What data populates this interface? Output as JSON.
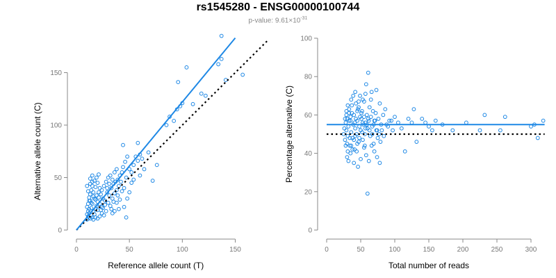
{
  "title": "rs1545280 - ENSG00000100744",
  "subtitle": {
    "prefix": "p-value: 9.61×10",
    "exponent": "-31"
  },
  "colors": {
    "points": "#1e88e5",
    "fit": "#1e88e5",
    "reference": "#000000",
    "axis": "#888888"
  },
  "chart_data": [
    {
      "type": "scatter",
      "xlabel": "Reference allele count (T)",
      "ylabel": "Alternative allele count (C)",
      "xlim": [
        0,
        180
      ],
      "ylim": [
        0,
        180
      ],
      "xticks": [
        0,
        50,
        100,
        150
      ],
      "yticks": [
        0,
        50,
        100,
        150
      ],
      "fit_line": {
        "x": [
          0,
          150
        ],
        "y": [
          0,
          183
        ]
      },
      "reference_line": {
        "x": [
          0,
          180
        ],
        "y": [
          0,
          180
        ],
        "style": "dotted"
      },
      "points": [
        [
          10,
          10
        ],
        [
          11,
          13
        ],
        [
          12,
          12
        ],
        [
          13,
          11
        ],
        [
          10,
          15
        ],
        [
          11,
          18
        ],
        [
          12,
          20
        ],
        [
          10,
          22
        ],
        [
          11,
          25
        ],
        [
          13,
          28
        ],
        [
          12,
          16
        ],
        [
          14,
          14
        ],
        [
          15,
          12
        ],
        [
          16,
          18
        ],
        [
          14,
          21
        ],
        [
          15,
          25
        ],
        [
          17,
          15
        ],
        [
          18,
          20
        ],
        [
          19,
          23
        ],
        [
          20,
          19
        ],
        [
          12,
          31
        ],
        [
          13,
          34
        ],
        [
          14,
          38
        ],
        [
          15,
          42
        ],
        [
          16,
          36
        ],
        [
          18,
          41
        ],
        [
          20,
          45
        ],
        [
          22,
          40
        ],
        [
          13,
          49
        ],
        [
          15,
          52
        ],
        [
          17,
          47
        ],
        [
          19,
          50
        ],
        [
          21,
          53
        ],
        [
          16,
          32
        ],
        [
          18,
          29
        ],
        [
          20,
          27
        ],
        [
          22,
          25
        ],
        [
          24,
          22
        ],
        [
          21,
          31
        ],
        [
          23,
          34
        ],
        [
          25,
          30
        ],
        [
          27,
          28
        ],
        [
          24,
          38
        ],
        [
          26,
          42
        ],
        [
          28,
          46
        ],
        [
          30,
          50
        ],
        [
          29,
          36
        ],
        [
          31,
          33
        ],
        [
          33,
          40
        ],
        [
          35,
          44
        ],
        [
          32,
          52
        ],
        [
          34,
          48
        ],
        [
          36,
          55
        ],
        [
          38,
          58
        ],
        [
          30,
          26
        ],
        [
          32,
          23
        ],
        [
          34,
          30
        ],
        [
          36,
          35
        ],
        [
          38,
          38
        ],
        [
          40,
          42
        ],
        [
          42,
          46
        ],
        [
          39,
          33
        ],
        [
          41,
          29
        ],
        [
          43,
          37
        ],
        [
          45,
          40
        ],
        [
          47,
          50
        ],
        [
          44,
          60
        ],
        [
          46,
          65
        ],
        [
          48,
          70
        ],
        [
          50,
          58
        ],
        [
          52,
          55
        ],
        [
          54,
          62
        ],
        [
          56,
          70
        ],
        [
          58,
          66
        ],
        [
          60,
          72
        ],
        [
          48,
          30
        ],
        [
          50,
          36
        ],
        [
          52,
          45
        ],
        [
          54,
          48
        ],
        [
          45,
          22
        ],
        [
          47,
          12
        ],
        [
          44,
          81
        ],
        [
          58,
          83
        ],
        [
          62,
          68
        ],
        [
          68,
          74
        ],
        [
          72,
          47
        ],
        [
          76,
          62
        ],
        [
          60,
          52
        ],
        [
          64,
          58
        ],
        [
          40,
          20
        ],
        [
          38,
          26
        ],
        [
          36,
          18
        ],
        [
          34,
          16
        ],
        [
          28,
          18
        ],
        [
          26,
          14
        ],
        [
          24,
          16
        ],
        [
          22,
          13
        ],
        [
          20,
          11
        ],
        [
          18,
          12
        ],
        [
          16,
          10
        ],
        [
          14,
          26
        ],
        [
          12,
          28
        ],
        [
          11,
          37
        ],
        [
          10,
          42
        ],
        [
          13,
          44
        ],
        [
          15,
          46
        ],
        [
          17,
          30
        ],
        [
          19,
          33
        ],
        [
          21,
          36
        ],
        [
          23,
          19
        ],
        [
          25,
          21
        ],
        [
          27,
          24
        ],
        [
          29,
          40
        ],
        [
          31,
          44
        ],
        [
          33,
          20
        ],
        [
          35,
          27
        ],
        [
          37,
          46
        ],
        [
          39,
          48
        ],
        [
          41,
          52
        ],
        [
          43,
          55
        ],
        [
          85,
          100
        ],
        [
          88,
          108
        ],
        [
          92,
          104
        ],
        [
          95,
          115
        ],
        [
          98,
          118
        ],
        [
          100,
          121
        ],
        [
          96,
          141
        ],
        [
          104,
          155
        ],
        [
          110,
          120
        ],
        [
          118,
          130
        ],
        [
          122,
          128
        ],
        [
          134,
          158
        ],
        [
          137,
          163
        ],
        [
          137,
          185
        ],
        [
          141,
          143
        ],
        [
          157,
          148
        ]
      ]
    },
    {
      "type": "scatter",
      "xlabel": "Total number of reads",
      "ylabel": "Percentage alternative (C)",
      "xlim": [
        0,
        320
      ],
      "ylim": [
        0,
        100
      ],
      "xticks": [
        0,
        50,
        100,
        150,
        200,
        250,
        300
      ],
      "yticks": [
        0,
        20,
        40,
        60,
        80,
        100
      ],
      "fit_line": {
        "x": [
          0,
          320
        ],
        "y": [
          55,
          55
        ]
      },
      "reference_line": {
        "x": [
          0,
          320
        ],
        "y": [
          50,
          50
        ],
        "style": "dotted"
      },
      "points": [
        [
          25,
          50
        ],
        [
          26,
          53
        ],
        [
          27,
          47
        ],
        [
          28,
          56
        ],
        [
          29,
          52
        ],
        [
          30,
          45
        ],
        [
          30,
          58
        ],
        [
          31,
          49
        ],
        [
          32,
          54
        ],
        [
          33,
          61
        ],
        [
          34,
          44
        ],
        [
          35,
          57
        ],
        [
          36,
          51
        ],
        [
          37,
          65
        ],
        [
          38,
          48
        ],
        [
          39,
          55
        ],
        [
          40,
          60
        ],
        [
          41,
          42
        ],
        [
          42,
          53
        ],
        [
          43,
          66
        ],
        [
          44,
          50
        ],
        [
          45,
          57
        ],
        [
          46,
          63
        ],
        [
          47,
          46
        ],
        [
          48,
          54
        ],
        [
          49,
          70
        ],
        [
          50,
          52
        ],
        [
          51,
          58
        ],
        [
          52,
          62
        ],
        [
          53,
          47
        ],
        [
          54,
          55
        ],
        [
          55,
          67
        ],
        [
          56,
          50
        ],
        [
          57,
          56
        ],
        [
          58,
          76
        ],
        [
          59,
          60
        ],
        [
          60,
          53
        ],
        [
          61,
          82
        ],
        [
          62,
          57
        ],
        [
          63,
          64
        ],
        [
          64,
          49
        ],
        [
          65,
          59
        ],
        [
          66,
          72
        ],
        [
          67,
          54
        ],
        [
          68,
          62
        ],
        [
          69,
          45
        ],
        [
          70,
          57
        ],
        [
          72,
          61
        ],
        [
          74,
          52
        ],
        [
          76,
          58
        ],
        [
          78,
          66
        ],
        [
          80,
          55
        ],
        [
          83,
          60
        ],
        [
          86,
          63
        ],
        [
          90,
          54
        ],
        [
          95,
          57
        ],
        [
          30,
          38
        ],
        [
          32,
          36
        ],
        [
          35,
          40
        ],
        [
          38,
          42
        ],
        [
          40,
          35
        ],
        [
          44,
          41
        ],
        [
          46,
          33
        ],
        [
          50,
          37
        ],
        [
          55,
          43
        ],
        [
          58,
          39
        ],
        [
          62,
          36
        ],
        [
          66,
          44
        ],
        [
          70,
          41
        ],
        [
          74,
          38
        ],
        [
          78,
          35
        ],
        [
          60,
          19
        ],
        [
          45,
          45
        ],
        [
          48,
          48
        ],
        [
          52,
          51
        ],
        [
          56,
          44
        ],
        [
          36,
          44
        ],
        [
          40,
          47
        ],
        [
          42,
          49
        ],
        [
          34,
          48
        ],
        [
          28,
          44
        ],
        [
          31,
          41
        ],
        [
          29,
          60
        ],
        [
          33,
          63
        ],
        [
          36,
          68
        ],
        [
          39,
          70
        ],
        [
          42,
          72
        ],
        [
          47,
          67
        ],
        [
          53,
          68
        ],
        [
          57,
          71
        ],
        [
          65,
          68
        ],
        [
          73,
          73
        ],
        [
          27,
          58
        ],
        [
          29,
          62
        ],
        [
          31,
          65
        ],
        [
          33,
          57
        ],
        [
          35,
          59
        ],
        [
          37,
          61
        ],
        [
          41,
          56
        ],
        [
          43,
          58
        ],
        [
          45,
          62
        ],
        [
          47,
          64
        ],
        [
          49,
          59
        ],
        [
          51,
          61
        ],
        [
          53,
          56
        ],
        [
          55,
          59
        ],
        [
          57,
          53
        ],
        [
          59,
          55
        ],
        [
          61,
          58
        ],
        [
          63,
          52
        ],
        [
          67,
          50
        ],
        [
          69,
          55
        ],
        [
          71,
          57
        ],
        [
          73,
          52
        ],
        [
          75,
          48
        ],
        [
          77,
          50
        ],
        [
          79,
          46
        ],
        [
          81,
          52
        ],
        [
          84,
          49
        ],
        [
          88,
          55
        ],
        [
          92,
          57
        ],
        [
          97,
          52
        ],
        [
          100,
          59
        ],
        [
          105,
          56
        ],
        [
          110,
          53
        ],
        [
          115,
          41
        ],
        [
          120,
          58
        ],
        [
          125,
          56
        ],
        [
          128,
          63
        ],
        [
          132,
          46
        ],
        [
          140,
          58
        ],
        [
          145,
          56
        ],
        [
          150,
          54
        ],
        [
          155,
          52
        ],
        [
          160,
          57
        ],
        [
          170,
          55
        ],
        [
          185,
          52
        ],
        [
          205,
          56
        ],
        [
          225,
          52
        ],
        [
          232,
          60
        ],
        [
          255,
          52
        ],
        [
          262,
          59
        ],
        [
          300,
          54
        ],
        [
          305,
          55
        ],
        [
          310,
          48
        ],
        [
          318,
          57
        ]
      ]
    }
  ]
}
